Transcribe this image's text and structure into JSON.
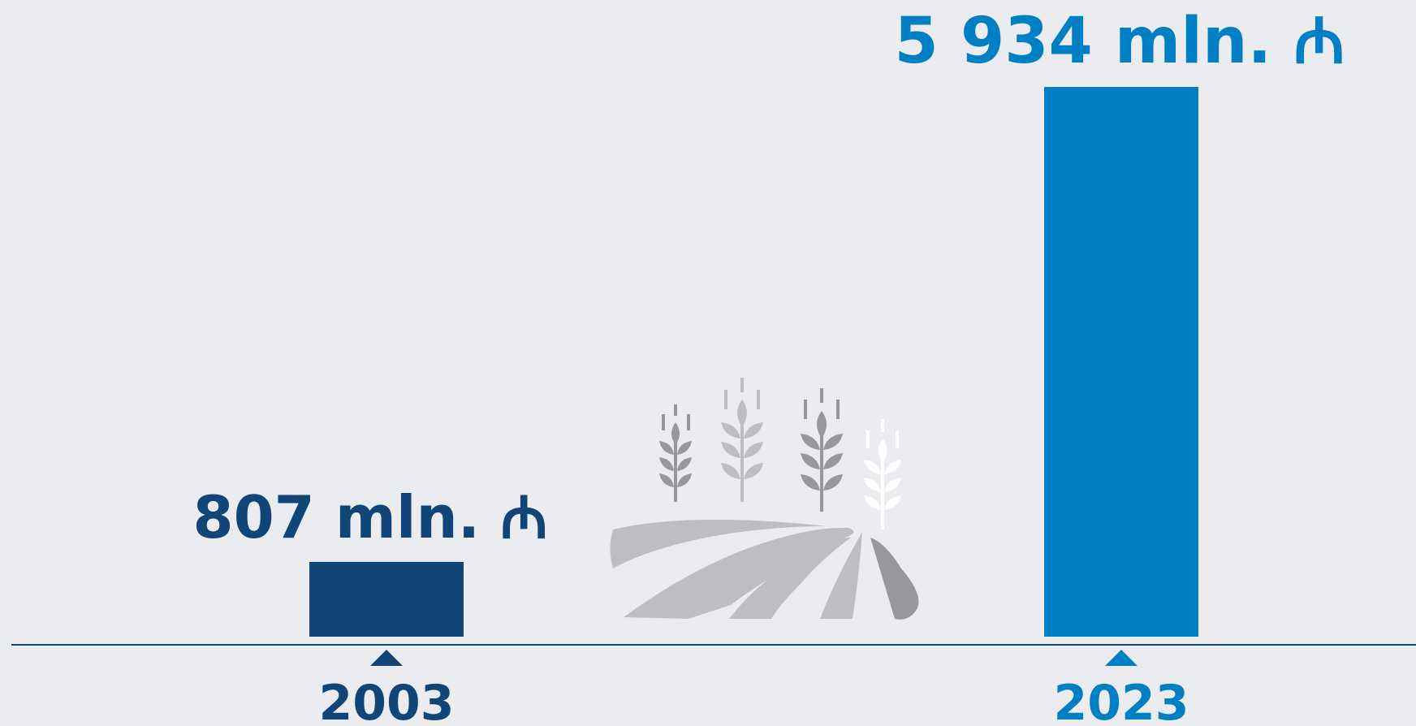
{
  "chart_data": {
    "type": "bar",
    "categories": [
      "2003",
      "2023"
    ],
    "values": [
      807,
      5934
    ],
    "value_labels": [
      "807 mln. ₼",
      "5 934 mln. ₼"
    ],
    "colors": [
      "#124577",
      "#017fc4"
    ]
  }
}
